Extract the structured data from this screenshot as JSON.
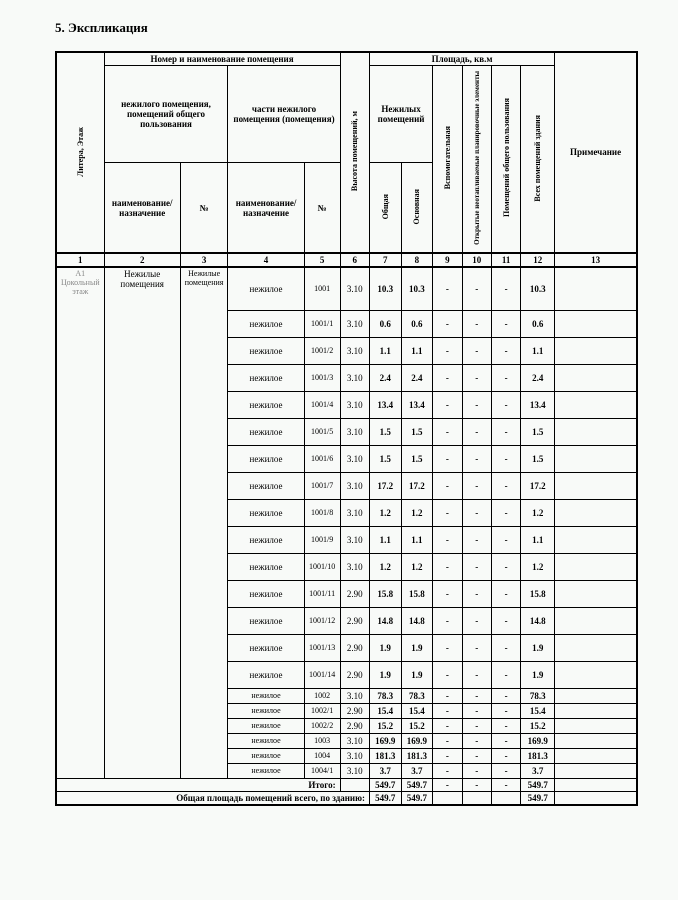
{
  "section_title": "5.   Экспликация",
  "headers": {
    "col_litera": "Литера, Этаж",
    "group_nomer": "Номер и наименование помещения",
    "group_ploshad": "Площадь, кв.м",
    "sub_nezhilogo": "нежилого помещения, помещений общего пользования",
    "sub_chasti": "части нежилого помещения (помещения)",
    "col_vysota": "Высота помещений, м",
    "sub_nezhilyh": "Нежилых помещений",
    "col_primechanie": "Примечание",
    "col_naim1": "наименование/ назначение",
    "col_no1": "№",
    "col_naim2": "наименование/ назначение",
    "col_no2": "№",
    "col_obshaya": "Общая",
    "col_osnovnaya": "Основная",
    "col_vspomog": "Вспомогательная",
    "col_otkryt": "Открытые неотапливаемые планировочные элементы",
    "col_pomesh_obsh": "Помещений общего пользования",
    "col_vseh": "Всех помещений здания"
  },
  "col_numbers": [
    "1",
    "2",
    "3",
    "4",
    "5",
    "6",
    "7",
    "8",
    "9",
    "10",
    "11",
    "12",
    "13"
  ],
  "litera": "А1",
  "etazh": "Цокольный этаж",
  "group_naim": "Нежилые помещения",
  "group_no": "Нежилые помещения",
  "rows": [
    {
      "naim": "нежилое",
      "no": "1001",
      "h": "3.10",
      "ob": "10.3",
      "osn": "10.3",
      "v9": "-",
      "v10": "-",
      "v11": "-",
      "v12": "10.3",
      "tall": true
    },
    {
      "naim": "нежилое",
      "no": "1001/1",
      "h": "3.10",
      "ob": "0.6",
      "osn": "0.6",
      "v9": "-",
      "v10": "-",
      "v11": "-",
      "v12": "0.6"
    },
    {
      "naim": "нежилое",
      "no": "1001/2",
      "h": "3.10",
      "ob": "1.1",
      "osn": "1.1",
      "v9": "-",
      "v10": "-",
      "v11": "-",
      "v12": "1.1"
    },
    {
      "naim": "нежилое",
      "no": "1001/3",
      "h": "3.10",
      "ob": "2.4",
      "osn": "2.4",
      "v9": "-",
      "v10": "-",
      "v11": "-",
      "v12": "2.4"
    },
    {
      "naim": "нежилое",
      "no": "1001/4",
      "h": "3.10",
      "ob": "13.4",
      "osn": "13.4",
      "v9": "-",
      "v10": "-",
      "v11": "-",
      "v12": "13.4"
    },
    {
      "naim": "нежилое",
      "no": "1001/5",
      "h": "3.10",
      "ob": "1.5",
      "osn": "1.5",
      "v9": "-",
      "v10": "-",
      "v11": "-",
      "v12": "1.5"
    },
    {
      "naim": "нежилое",
      "no": "1001/6",
      "h": "3.10",
      "ob": "1.5",
      "osn": "1.5",
      "v9": "-",
      "v10": "-",
      "v11": "-",
      "v12": "1.5"
    },
    {
      "naim": "нежилое",
      "no": "1001/7",
      "h": "3.10",
      "ob": "17.2",
      "osn": "17.2",
      "v9": "-",
      "v10": "-",
      "v11": "-",
      "v12": "17.2"
    },
    {
      "naim": "нежилое",
      "no": "1001/8",
      "h": "3.10",
      "ob": "1.2",
      "osn": "1.2",
      "v9": "-",
      "v10": "-",
      "v11": "-",
      "v12": "1.2"
    },
    {
      "naim": "нежилое",
      "no": "1001/9",
      "h": "3.10",
      "ob": "1.1",
      "osn": "1.1",
      "v9": "-",
      "v10": "-",
      "v11": "-",
      "v12": "1.1"
    },
    {
      "naim": "нежилое",
      "no": "1001/10",
      "h": "3.10",
      "ob": "1.2",
      "osn": "1.2",
      "v9": "-",
      "v10": "-",
      "v11": "-",
      "v12": "1.2"
    },
    {
      "naim": "нежилое",
      "no": "1001/11",
      "h": "2.90",
      "ob": "15.8",
      "osn": "15.8",
      "v9": "-",
      "v10": "-",
      "v11": "-",
      "v12": "15.8"
    },
    {
      "naim": "нежилое",
      "no": "1001/12",
      "h": "2.90",
      "ob": "14.8",
      "osn": "14.8",
      "v9": "-",
      "v10": "-",
      "v11": "-",
      "v12": "14.8"
    },
    {
      "naim": "нежилое",
      "no": "1001/13",
      "h": "2.90",
      "ob": "1.9",
      "osn": "1.9",
      "v9": "-",
      "v10": "-",
      "v11": "-",
      "v12": "1.9"
    },
    {
      "naim": "нежилое",
      "no": "1001/14",
      "h": "2.90",
      "ob": "1.9",
      "osn": "1.9",
      "v9": "-",
      "v10": "-",
      "v11": "-",
      "v12": "1.9"
    },
    {
      "naim": "нежилое",
      "no": "1002",
      "h": "3.10",
      "ob": "78.3",
      "osn": "78.3",
      "v9": "-",
      "v10": "-",
      "v11": "-",
      "v12": "78.3",
      "short": true
    },
    {
      "naim": "нежилое",
      "no": "1002/1",
      "h": "2.90",
      "ob": "15.4",
      "osn": "15.4",
      "v9": "-",
      "v10": "-",
      "v11": "-",
      "v12": "15.4",
      "short": true
    },
    {
      "naim": "нежилое",
      "no": "1002/2",
      "h": "2.90",
      "ob": "15.2",
      "osn": "15.2",
      "v9": "-",
      "v10": "-",
      "v11": "-",
      "v12": "15.2",
      "short": true
    },
    {
      "naim": "нежилое",
      "no": "1003",
      "h": "3.10",
      "ob": "169.9",
      "osn": "169.9",
      "v9": "-",
      "v10": "-",
      "v11": "-",
      "v12": "169.9",
      "short": true
    },
    {
      "naim": "нежилое",
      "no": "1004",
      "h": "3.10",
      "ob": "181.3",
      "osn": "181.3",
      "v9": "-",
      "v10": "-",
      "v11": "-",
      "v12": "181.3",
      "short": true
    },
    {
      "naim": "нежилое",
      "no": "1004/1",
      "h": "3.10",
      "ob": "3.7",
      "osn": "3.7",
      "v9": "-",
      "v10": "-",
      "v11": "-",
      "v12": "3.7",
      "short": true
    }
  ],
  "itogo": {
    "label": "Итого:",
    "ob": "549.7",
    "osn": "549.7",
    "v9": "-",
    "v10": "-",
    "v11": "-",
    "v12": "549.7"
  },
  "total": {
    "label": "Общая площадь помещений всего, по зданию:",
    "ob": "549.7",
    "osn": "549.7",
    "v12": "549.7"
  }
}
